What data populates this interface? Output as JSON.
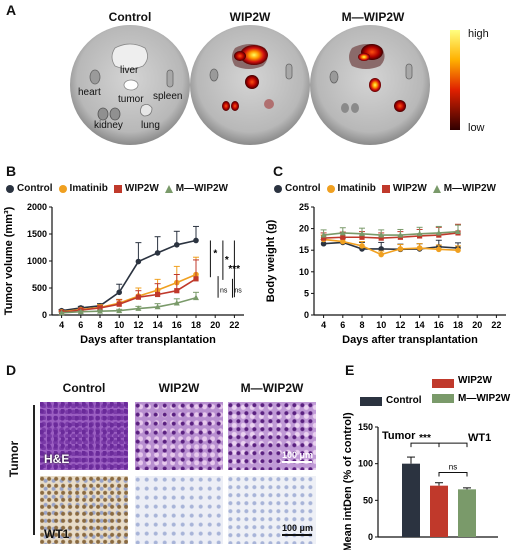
{
  "panels": {
    "A": {
      "label": "A",
      "groups": [
        "Control",
        "WIP2W",
        "M—WIP2W"
      ],
      "organs": [
        "liver",
        "heart",
        "tumor",
        "spleen",
        "kidney",
        "lung"
      ],
      "scale": {
        "high": "high",
        "low": "low"
      }
    },
    "B": {
      "label": "B"
    },
    "C": {
      "label": "C"
    },
    "D": {
      "label": "D",
      "groups": [
        "Control",
        "WIP2W",
        "M—WIP2W"
      ],
      "row_label": "Tumor",
      "stains": [
        "H&E",
        "WT1"
      ],
      "scalebar": "100 μm"
    },
    "E": {
      "label": "E"
    }
  },
  "legend_bc": [
    "Control",
    "Imatinib",
    "WIP2W",
    "M—WIP2W"
  ],
  "colors": {
    "control": "#2b3340",
    "imatinib": "#f0a020",
    "wip2w": "#c0392b",
    "mwip2w": "#7a9a6a"
  },
  "chart_data": [
    {
      "type": "line",
      "panel": "B",
      "xlabel": "Days after transplantation",
      "ylabel": "Tumor volume (mm³)",
      "x": [
        4,
        6,
        8,
        10,
        12,
        14,
        16,
        18
      ],
      "xlim": [
        3,
        23
      ],
      "xticks": [
        4,
        6,
        8,
        10,
        12,
        14,
        16,
        18,
        20,
        22
      ],
      "ylim": [
        0,
        2000
      ],
      "yticks": [
        0,
        500,
        1000,
        1500,
        2000
      ],
      "series": [
        {
          "name": "Control",
          "values": [
            80,
            130,
            170,
            420,
            990,
            1150,
            1300,
            1380
          ],
          "err": [
            20,
            30,
            40,
            150,
            350,
            300,
            250,
            260
          ]
        },
        {
          "name": "Imatinib",
          "values": [
            60,
            100,
            140,
            220,
            350,
            460,
            600,
            750
          ],
          "err": [
            20,
            25,
            50,
            70,
            150,
            200,
            300,
            320
          ]
        },
        {
          "name": "WIP2W",
          "values": [
            50,
            90,
            130,
            200,
            330,
            380,
            450,
            670
          ],
          "err": [
            20,
            20,
            40,
            80,
            120,
            200,
            300,
            350
          ]
        },
        {
          "name": "M—WIP2W",
          "values": [
            40,
            60,
            70,
            80,
            120,
            150,
            220,
            320
          ],
          "err": [
            10,
            15,
            20,
            25,
            40,
            60,
            80,
            100
          ]
        }
      ],
      "significance": [
        "*",
        "*",
        "***",
        "ns",
        "ns"
      ]
    },
    {
      "type": "line",
      "panel": "C",
      "xlabel": "Days after transplantation",
      "ylabel": "Body weight (g)",
      "x": [
        4,
        6,
        8,
        10,
        12,
        14,
        16,
        18
      ],
      "xlim": [
        3,
        23
      ],
      "xticks": [
        4,
        6,
        8,
        10,
        12,
        14,
        16,
        18,
        20,
        22
      ],
      "ylim": [
        0,
        25
      ],
      "yticks": [
        0,
        5,
        10,
        15,
        20,
        25
      ],
      "series": [
        {
          "name": "Control",
          "values": [
            16.5,
            16.8,
            15.3,
            15.3,
            15.2,
            15.3,
            15.8,
            15.5
          ],
          "err": [
            1.0,
            1.0,
            1.5,
            1.5,
            1.2,
            1.2,
            1.5,
            1.2
          ]
        },
        {
          "name": "Imatinib",
          "values": [
            17.5,
            17.0,
            16.0,
            14.0,
            15.3,
            15.5,
            15.2,
            15.0
          ],
          "err": [
            1.0,
            1.0,
            1.0,
            0.8,
            1.0,
            1.0,
            1.0,
            1.0
          ]
        },
        {
          "name": "WIP2W",
          "values": [
            17.8,
            18.0,
            18.0,
            17.8,
            18.0,
            18.3,
            18.5,
            19.0
          ],
          "err": [
            1.2,
            1.2,
            1.3,
            1.2,
            1.3,
            1.5,
            1.8,
            2.0
          ]
        },
        {
          "name": "M—WIP2W",
          "values": [
            18.5,
            19.0,
            18.8,
            18.5,
            18.5,
            18.8,
            19.0,
            19.3
          ],
          "err": [
            1.2,
            1.2,
            1.3,
            1.2,
            1.3,
            1.5,
            1.5,
            1.5
          ]
        }
      ]
    },
    {
      "type": "bar",
      "panel": "E",
      "ylabel": "Mean intDen (% of control)",
      "categories": [
        "Control",
        "WIP2W",
        "M—WIP2W"
      ],
      "values": [
        100,
        70,
        65
      ],
      "err": [
        9,
        4,
        2
      ],
      "ylim": [
        0,
        150
      ],
      "yticks": [
        0,
        50,
        100,
        150
      ],
      "annotations": [
        "Tumor",
        "WT1"
      ],
      "significance": [
        "***",
        "ns"
      ]
    }
  ]
}
